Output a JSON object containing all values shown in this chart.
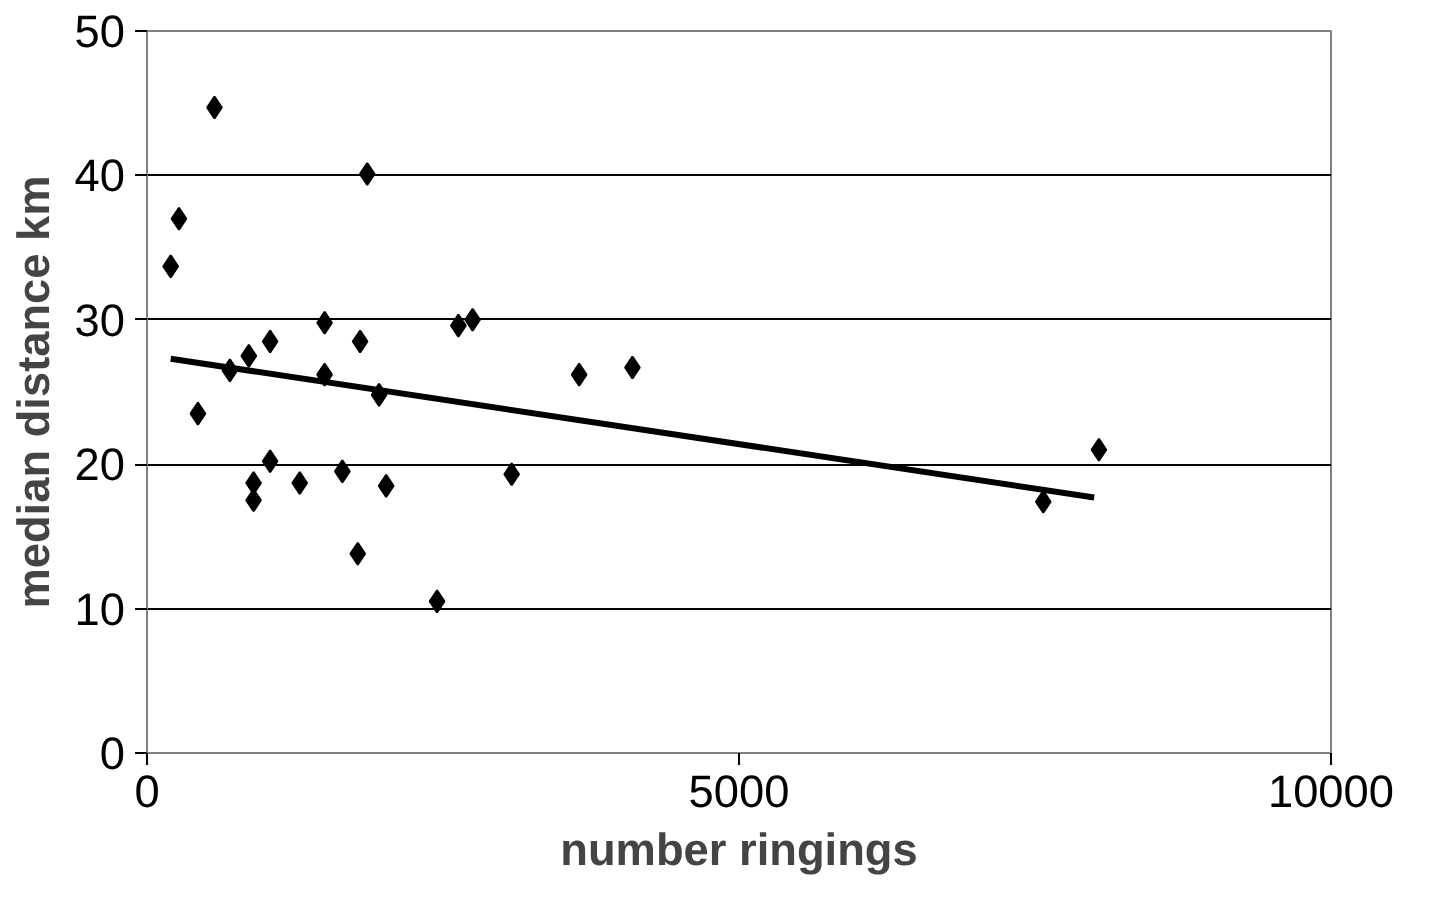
{
  "chart_data": {
    "type": "scatter",
    "xlabel": "number ringings",
    "ylabel": "median distance km",
    "xlim": [
      0,
      10000
    ],
    "xticks": [
      0,
      5000,
      10000
    ],
    "ylim": [
      0,
      50
    ],
    "yticks": [
      0,
      10,
      20,
      30,
      40,
      50
    ],
    "grid": "y",
    "series": [
      {
        "marker": "diamond",
        "color": "#000000",
        "x": [
          200,
          270,
          570,
          430,
          700,
          860,
          900,
          900,
          1040,
          1040,
          1290,
          1500,
          1500,
          1650,
          1780,
          1800,
          1860,
          1960,
          2020,
          2450,
          2630,
          2750,
          3080,
          3650,
          4100,
          7570,
          8040
        ],
        "values": [
          33.7,
          37,
          44.7,
          23.5,
          26.5,
          27.5,
          18.7,
          17.5,
          28.5,
          20.2,
          18.7,
          29.8,
          26.2,
          19.5,
          13.8,
          28.5,
          40.1,
          24.8,
          18.5,
          10.5,
          29.6,
          30,
          19.3,
          26.2,
          26.7,
          17.4,
          21
        ]
      },
      {
        "type": "line",
        "marker": "none",
        "color": "#000000",
        "x": [
          200,
          8000
        ],
        "values": [
          27.3,
          17.7
        ]
      }
    ]
  }
}
